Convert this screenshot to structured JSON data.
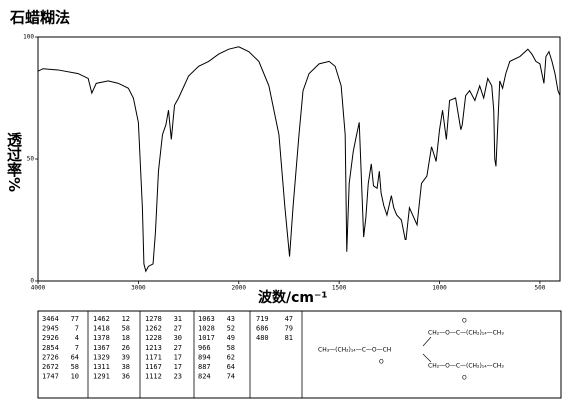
{
  "chart_data": {
    "type": "line",
    "title": "石蜡糊法",
    "xlabel": "波数/cm⁻¹",
    "ylabel": "透过率%",
    "x": [
      4000,
      3950,
      3800,
      3600,
      3500,
      3464,
      3420,
      3300,
      3200,
      3100,
      3050,
      3000,
      2960,
      2945,
      2926,
      2900,
      2854,
      2830,
      2800,
      2760,
      2726,
      2700,
      2672,
      2640,
      2600,
      2500,
      2400,
      2300,
      2200,
      2100,
      2000,
      1950,
      1900,
      1850,
      1800,
      1770,
      1747,
      1730,
      1700,
      1680,
      1650,
      1600,
      1550,
      1520,
      1490,
      1470,
      1462,
      1450,
      1430,
      1418,
      1400,
      1378,
      1367,
      1355,
      1340,
      1329,
      1311,
      1300,
      1291,
      1278,
      1262,
      1240,
      1228,
      1213,
      1190,
      1171,
      1167,
      1150,
      1112,
      1090,
      1063,
      1040,
      1028,
      1017,
      1000,
      985,
      966,
      950,
      920,
      894,
      887,
      870,
      850,
      824,
      800,
      780,
      760,
      740,
      730,
      725,
      719,
      712,
      700,
      686,
      670,
      650,
      600,
      560,
      540,
      520,
      500,
      480,
      470,
      455,
      440,
      425,
      410,
      400
    ],
    "values": [
      86,
      87,
      86.5,
      85,
      83,
      77,
      81,
      82,
      81,
      79,
      75,
      65,
      30,
      7,
      4,
      6,
      7,
      20,
      45,
      60,
      64,
      70,
      58,
      72,
      75,
      84,
      88,
      90,
      93,
      95,
      96,
      94,
      90,
      80,
      60,
      30,
      10,
      30,
      60,
      78,
      85,
      89,
      90,
      88,
      80,
      60,
      12,
      40,
      53,
      58,
      65,
      18,
      26,
      40,
      48,
      39,
      38,
      45,
      36,
      31,
      27,
      35,
      30,
      27,
      25,
      17,
      17,
      30,
      23,
      40,
      43,
      55,
      52,
      49,
      62,
      70,
      58,
      74,
      75,
      62,
      64,
      76,
      78,
      74,
      80,
      75,
      83,
      80,
      70,
      50,
      47,
      60,
      82,
      79,
      85,
      90,
      92,
      95,
      93,
      90,
      89,
      81,
      92,
      94,
      90,
      85,
      78,
      76
    ],
    "color": "#000000",
    "xlim": [
      4000,
      400
    ],
    "xticks": [
      4000,
      3000,
      2000,
      1500,
      1000,
      500
    ],
    "ylim": [
      0,
      100
    ],
    "yticks": [
      0,
      50,
      100
    ]
  },
  "peak_table": {
    "columns": [
      [
        [
          3464,
          77
        ],
        [
          2945,
          7
        ],
        [
          2926,
          4
        ],
        [
          2854,
          7
        ],
        [
          2726,
          64
        ],
        [
          2672,
          58
        ],
        [
          1747,
          10
        ]
      ],
      [
        [
          1462,
          12
        ],
        [
          1418,
          58
        ],
        [
          1378,
          18
        ],
        [
          1367,
          26
        ],
        [
          1329,
          39
        ],
        [
          1311,
          38
        ],
        [
          1291,
          36
        ]
      ],
      [
        [
          1278,
          31
        ],
        [
          1262,
          27
        ],
        [
          1228,
          30
        ],
        [
          1213,
          27
        ],
        [
          1171,
          17
        ],
        [
          1167,
          17
        ],
        [
          1112,
          23
        ]
      ],
      [
        [
          1063,
          43
        ],
        [
          1028,
          52
        ],
        [
          1017,
          49
        ],
        [
          966,
          58
        ],
        [
          894,
          62
        ],
        [
          887,
          64
        ],
        [
          824,
          74
        ]
      ],
      [
        [
          719,
          47
        ],
        [
          686,
          79
        ],
        [
          480,
          81
        ]
      ]
    ]
  },
  "structure": {
    "lines": [
      "CH₃—(CH₂)₁₄—C—O—CH",
      "CH₂—O—C—(CH₂)₁₄—CH₃",
      "CH₂—O—C—(CH₂)₁₄—CH₃"
    ],
    "oxygens": [
      "O",
      "O",
      "O"
    ]
  }
}
